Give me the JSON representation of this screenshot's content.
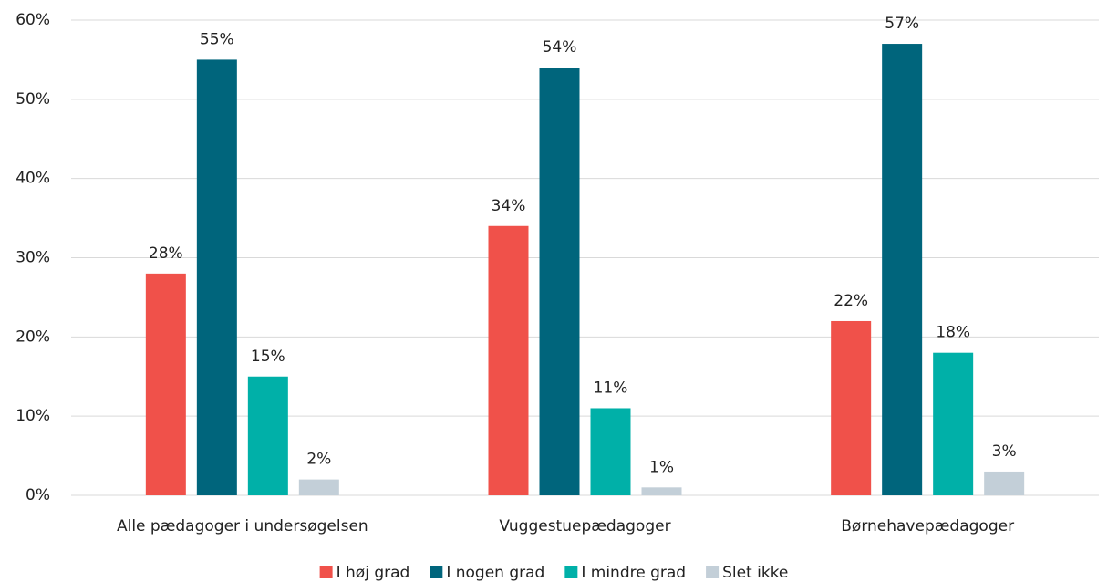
{
  "chart_data": {
    "type": "bar",
    "categories": [
      "Alle pædagoger i undersøgelsen",
      "Vuggestuepædagoger",
      "Børnehavepædagoger"
    ],
    "series": [
      {
        "name": "I høj grad",
        "color": "#f0514a",
        "values": [
          28,
          34,
          22
        ],
        "value_labels": [
          "28%",
          "34%",
          "22%"
        ]
      },
      {
        "name": "I nogen grad",
        "color": "#00657c",
        "values": [
          55,
          54,
          57
        ],
        "value_labels": [
          "55%",
          "54%",
          "57%"
        ]
      },
      {
        "name": "I mindre grad",
        "color": "#00b0a8",
        "values": [
          15,
          11,
          18
        ],
        "value_labels": [
          "15%",
          "11%",
          "18%"
        ]
      },
      {
        "name": "Slet ikke",
        "color": "#c3cfd8",
        "values": [
          2,
          1,
          3
        ],
        "value_labels": [
          "2%",
          "1%",
          "3%"
        ]
      }
    ],
    "ylim": [
      0,
      60
    ],
    "yticks": [
      {
        "value": 0,
        "label": "0%"
      },
      {
        "value": 10,
        "label": "10%"
      },
      {
        "value": 20,
        "label": "20%"
      },
      {
        "value": 30,
        "label": "30%"
      },
      {
        "value": 40,
        "label": "40%"
      },
      {
        "value": 50,
        "label": "50%"
      },
      {
        "value": 60,
        "label": "60%"
      }
    ],
    "grid": true,
    "legend": "bottom"
  }
}
